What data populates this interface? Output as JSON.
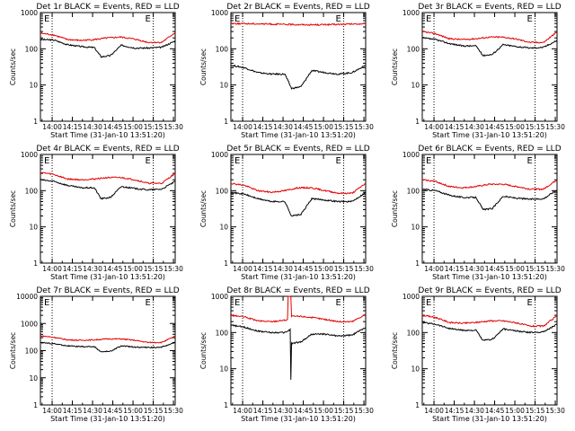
{
  "chart_data": [
    {
      "type": "line",
      "title": "Det 1r BLACK = Events, RED = LLD",
      "ylabel": "Counts/sec",
      "xlabel": "Start Time (31-Jan-10 13:51:20)",
      "x_unit": "minutes after 13:51:20",
      "xlim": [
        0,
        100
      ],
      "x_tick_labels": [
        "14:00",
        "14:15",
        "14:30",
        "14:45",
        "15:00",
        "15:15",
        "15:30"
      ],
      "yscale": "log",
      "ylim": [
        1,
        1000
      ],
      "y_tick_labels": [
        "1",
        "10",
        "100",
        "1000"
      ],
      "markers": [
        {
          "label": "E",
          "x": 8.7
        },
        {
          "label": "E",
          "x": 83.7
        }
      ],
      "series": [
        {
          "name": "Events",
          "color": "#000000",
          "x": [
            0,
            10,
            20,
            30,
            40,
            45,
            52,
            60,
            70,
            80,
            90,
            100
          ],
          "y": [
            180,
            175,
            130,
            115,
            108,
            60,
            65,
            125,
            105,
            105,
            110,
            165
          ]
        },
        {
          "name": "LLD",
          "color": "#e00000",
          "x": [
            0,
            10,
            20,
            30,
            40,
            50,
            60,
            70,
            80,
            90,
            100
          ],
          "y": [
            270,
            240,
            180,
            170,
            180,
            200,
            210,
            185,
            150,
            150,
            280
          ]
        }
      ]
    },
    {
      "type": "line",
      "title": "Det 2r BLACK = Events, RED = LLD",
      "ylabel": "Counts/sec",
      "xlabel": "Start Time (31-Jan-10 13:51:20)",
      "x_unit": "minutes after 13:51:20",
      "xlim": [
        0,
        100
      ],
      "x_tick_labels": [
        "14:00",
        "14:15",
        "14:30",
        "14:45",
        "15:00",
        "15:15",
        "15:30"
      ],
      "yscale": "log",
      "ylim": [
        1,
        1000
      ],
      "y_tick_labels": [
        "1",
        "10",
        "100",
        "1000"
      ],
      "markers": [
        {
          "label": "E",
          "x": 8.7
        },
        {
          "label": "E",
          "x": 83.7
        }
      ],
      "series": [
        {
          "name": "Events",
          "color": "#000000",
          "x": [
            0,
            10,
            20,
            30,
            40,
            45,
            52,
            60,
            70,
            80,
            90,
            100
          ],
          "y": [
            35,
            30,
            22,
            20,
            20,
            8,
            9,
            25,
            22,
            20,
            22,
            35
          ]
        },
        {
          "name": "LLD",
          "color": "#e00000",
          "x": [
            0,
            20,
            40,
            60,
            80,
            100
          ],
          "y": [
            500,
            490,
            470,
            460,
            470,
            490
          ]
        }
      ]
    },
    {
      "type": "line",
      "title": "Det 3r BLACK = Events, RED = LLD",
      "ylabel": "Counts/sec",
      "xlabel": "Start Time (31-Jan-10 13:51:20)",
      "x_unit": "minutes after 13:51:20",
      "xlim": [
        0,
        100
      ],
      "x_tick_labels": [
        "14:00",
        "14:15",
        "14:30",
        "14:45",
        "15:00",
        "15:15",
        "15:30"
      ],
      "yscale": "log",
      "ylim": [
        1,
        1000
      ],
      "y_tick_labels": [
        "1",
        "10",
        "100",
        "1000"
      ],
      "markers": [
        {
          "label": "E",
          "x": 8.7
        },
        {
          "label": "E",
          "x": 83.7
        }
      ],
      "series": [
        {
          "name": "Events",
          "color": "#000000",
          "x": [
            0,
            10,
            20,
            30,
            40,
            45,
            52,
            60,
            70,
            80,
            90,
            100
          ],
          "y": [
            200,
            180,
            140,
            120,
            120,
            65,
            70,
            130,
            115,
            105,
            110,
            170
          ]
        },
        {
          "name": "LLD",
          "color": "#e00000",
          "x": [
            0,
            10,
            20,
            30,
            40,
            50,
            60,
            70,
            80,
            90,
            100
          ],
          "y": [
            300,
            260,
            190,
            180,
            190,
            210,
            210,
            185,
            150,
            150,
            290
          ]
        }
      ]
    },
    {
      "type": "line",
      "title": "Det 4r BLACK = Events, RED = LLD",
      "ylabel": "Counts/sec",
      "xlabel": "Start Time (31-Jan-10 13:51:20)",
      "x_unit": "minutes after 13:51:20",
      "xlim": [
        0,
        100
      ],
      "x_tick_labels": [
        "14:00",
        "14:15",
        "14:30",
        "14:45",
        "15:00",
        "15:15",
        "15:30"
      ],
      "yscale": "log",
      "ylim": [
        1,
        1000
      ],
      "y_tick_labels": [
        "1",
        "10",
        "100",
        "1000"
      ],
      "markers": [
        {
          "label": "E",
          "x": 8.7
        },
        {
          "label": "E",
          "x": 83.7
        }
      ],
      "series": [
        {
          "name": "Events",
          "color": "#000000",
          "x": [
            0,
            10,
            20,
            30,
            40,
            45,
            52,
            60,
            70,
            80,
            90,
            100
          ],
          "y": [
            200,
            180,
            140,
            120,
            120,
            60,
            65,
            130,
            115,
            105,
            110,
            180
          ]
        },
        {
          "name": "LLD",
          "color": "#e00000",
          "x": [
            0,
            10,
            20,
            30,
            40,
            50,
            60,
            70,
            80,
            90,
            100
          ],
          "y": [
            320,
            280,
            210,
            200,
            210,
            230,
            230,
            200,
            160,
            160,
            300
          ]
        }
      ]
    },
    {
      "type": "line",
      "title": "Det 5r BLACK = Events, RED = LLD",
      "ylabel": "Counts/sec",
      "xlabel": "Start Time (31-Jan-10 13:51:20)",
      "x_unit": "minutes after 13:51:20",
      "xlim": [
        0,
        100
      ],
      "x_tick_labels": [
        "14:00",
        "14:15",
        "14:30",
        "14:45",
        "15:00",
        "15:15",
        "15:30"
      ],
      "yscale": "log",
      "ylim": [
        1,
        1000
      ],
      "y_tick_labels": [
        "1",
        "10",
        "100",
        "1000"
      ],
      "markers": [
        {
          "label": "E",
          "x": 8.7
        },
        {
          "label": "E",
          "x": 83.7
        }
      ],
      "series": [
        {
          "name": "Events",
          "color": "#000000",
          "x": [
            0,
            10,
            20,
            30,
            40,
            45,
            52,
            60,
            70,
            80,
            90,
            100
          ],
          "y": [
            90,
            80,
            60,
            50,
            50,
            20,
            22,
            60,
            55,
            50,
            50,
            90
          ]
        },
        {
          "name": "LLD",
          "color": "#e00000",
          "x": [
            0,
            10,
            20,
            30,
            40,
            50,
            60,
            70,
            80,
            90,
            100
          ],
          "y": [
            160,
            140,
            100,
            90,
            100,
            120,
            120,
            100,
            85,
            85,
            160
          ]
        }
      ]
    },
    {
      "type": "line",
      "title": "Det 6r BLACK = Events, RED = LLD",
      "ylabel": "Counts/sec",
      "xlabel": "Start Time (31-Jan-10 13:51:20)",
      "x_unit": "minutes after 13:51:20",
      "xlim": [
        0,
        100
      ],
      "x_tick_labels": [
        "14:00",
        "14:15",
        "14:30",
        "14:45",
        "15:00",
        "15:15",
        "15:30"
      ],
      "yscale": "log",
      "ylim": [
        1,
        1000
      ],
      "y_tick_labels": [
        "1",
        "10",
        "100",
        "1000"
      ],
      "markers": [
        {
          "label": "E",
          "x": 8.7
        },
        {
          "label": "E",
          "x": 83.7
        }
      ],
      "series": [
        {
          "name": "Events",
          "color": "#000000",
          "x": [
            0,
            10,
            20,
            30,
            40,
            45,
            52,
            60,
            70,
            80,
            90,
            100
          ],
          "y": [
            110,
            100,
            75,
            65,
            65,
            30,
            32,
            70,
            62,
            58,
            60,
            105
          ]
        },
        {
          "name": "LLD",
          "color": "#e00000",
          "x": [
            0,
            10,
            20,
            30,
            40,
            50,
            60,
            70,
            80,
            90,
            100
          ],
          "y": [
            200,
            180,
            130,
            120,
            130,
            150,
            150,
            130,
            110,
            110,
            200
          ]
        }
      ]
    },
    {
      "type": "line",
      "title": "Det 7r BLACK = Events, RED = LLD",
      "ylabel": "Counts/sec",
      "xlabel": "Start Time (31-Jan-10 13:51:20)",
      "x_unit": "minutes after 13:51:20",
      "xlim": [
        0,
        100
      ],
      "x_tick_labels": [
        "14:00",
        "14:15",
        "14:30",
        "14:45",
        "15:00",
        "15:15",
        "15:30"
      ],
      "yscale": "log",
      "ylim": [
        1,
        10000
      ],
      "y_tick_labels": [
        "1",
        "10",
        "100",
        "1000",
        "10000"
      ],
      "markers": [
        {
          "label": "E",
          "x": 8.7
        },
        {
          "label": "E",
          "x": 83.7
        }
      ],
      "series": [
        {
          "name": "Events",
          "color": "#000000",
          "x": [
            0,
            10,
            20,
            30,
            40,
            45,
            52,
            60,
            70,
            80,
            90,
            100
          ],
          "y": [
            200,
            180,
            150,
            140,
            140,
            90,
            95,
            150,
            135,
            130,
            135,
            200
          ]
        },
        {
          "name": "LLD",
          "color": "#e00000",
          "x": [
            0,
            10,
            20,
            30,
            40,
            50,
            60,
            70,
            80,
            90,
            100
          ],
          "y": [
            350,
            310,
            250,
            240,
            250,
            270,
            270,
            240,
            200,
            200,
            340
          ]
        }
      ]
    },
    {
      "type": "line",
      "title": "Det 8r BLACK = Events, RED = LLD",
      "ylabel": "Counts/sec",
      "xlabel": "Start Time (31-Jan-10 13:51:20)",
      "x_unit": "minutes after 13:51:20",
      "xlim": [
        0,
        100
      ],
      "x_tick_labels": [
        "14:00",
        "14:15",
        "14:30",
        "14:45",
        "15:00",
        "15:15",
        "15:30"
      ],
      "yscale": "log",
      "ylim": [
        1,
        1000
      ],
      "y_tick_labels": [
        "1",
        "10",
        "100",
        "1000"
      ],
      "markers": [
        {
          "label": "E",
          "x": 8.7
        },
        {
          "label": "E",
          "x": 83.7
        }
      ],
      "series": [
        {
          "name": "Events",
          "color": "#000000",
          "x": [
            0,
            10,
            20,
            30,
            40,
            44,
            44.5,
            45,
            52,
            60,
            70,
            80,
            90,
            100
          ],
          "y": [
            160,
            140,
            110,
            100,
            100,
            120,
            5,
            50,
            55,
            90,
            90,
            80,
            85,
            140
          ]
        },
        {
          "name": "LLD",
          "color": "#e00000",
          "x": [
            0,
            10,
            20,
            30,
            40,
            42,
            42.5,
            44.5,
            45,
            52,
            60,
            70,
            80,
            90,
            100
          ],
          "y": [
            300,
            270,
            210,
            200,
            220,
            230,
            1000,
            1000,
            280,
            280,
            260,
            230,
            200,
            200,
            320
          ]
        }
      ]
    },
    {
      "type": "line",
      "title": "Det 9r BLACK = Events, RED = LLD",
      "ylabel": "Counts/sec",
      "xlabel": "Start Time (31-Jan-10 13:51:20)",
      "x_unit": "minutes after 13:51:20",
      "xlim": [
        0,
        100
      ],
      "x_tick_labels": [
        "14:00",
        "14:15",
        "14:30",
        "14:45",
        "15:00",
        "15:15",
        "15:30"
      ],
      "yscale": "log",
      "ylim": [
        1,
        1000
      ],
      "y_tick_labels": [
        "1",
        "10",
        "100",
        "1000"
      ],
      "markers": [
        {
          "label": "E",
          "x": 8.7
        },
        {
          "label": "E",
          "x": 83.7
        }
      ],
      "series": [
        {
          "name": "Events",
          "color": "#000000",
          "x": [
            0,
            10,
            20,
            30,
            40,
            45,
            52,
            60,
            70,
            80,
            90,
            100
          ],
          "y": [
            190,
            170,
            130,
            115,
            115,
            60,
            65,
            125,
            110,
            100,
            105,
            170
          ]
        },
        {
          "name": "LLD",
          "color": "#e00000",
          "x": [
            0,
            10,
            20,
            30,
            40,
            50,
            60,
            70,
            80,
            90,
            100
          ],
          "y": [
            300,
            260,
            190,
            180,
            190,
            210,
            210,
            185,
            150,
            150,
            290
          ]
        }
      ]
    }
  ]
}
